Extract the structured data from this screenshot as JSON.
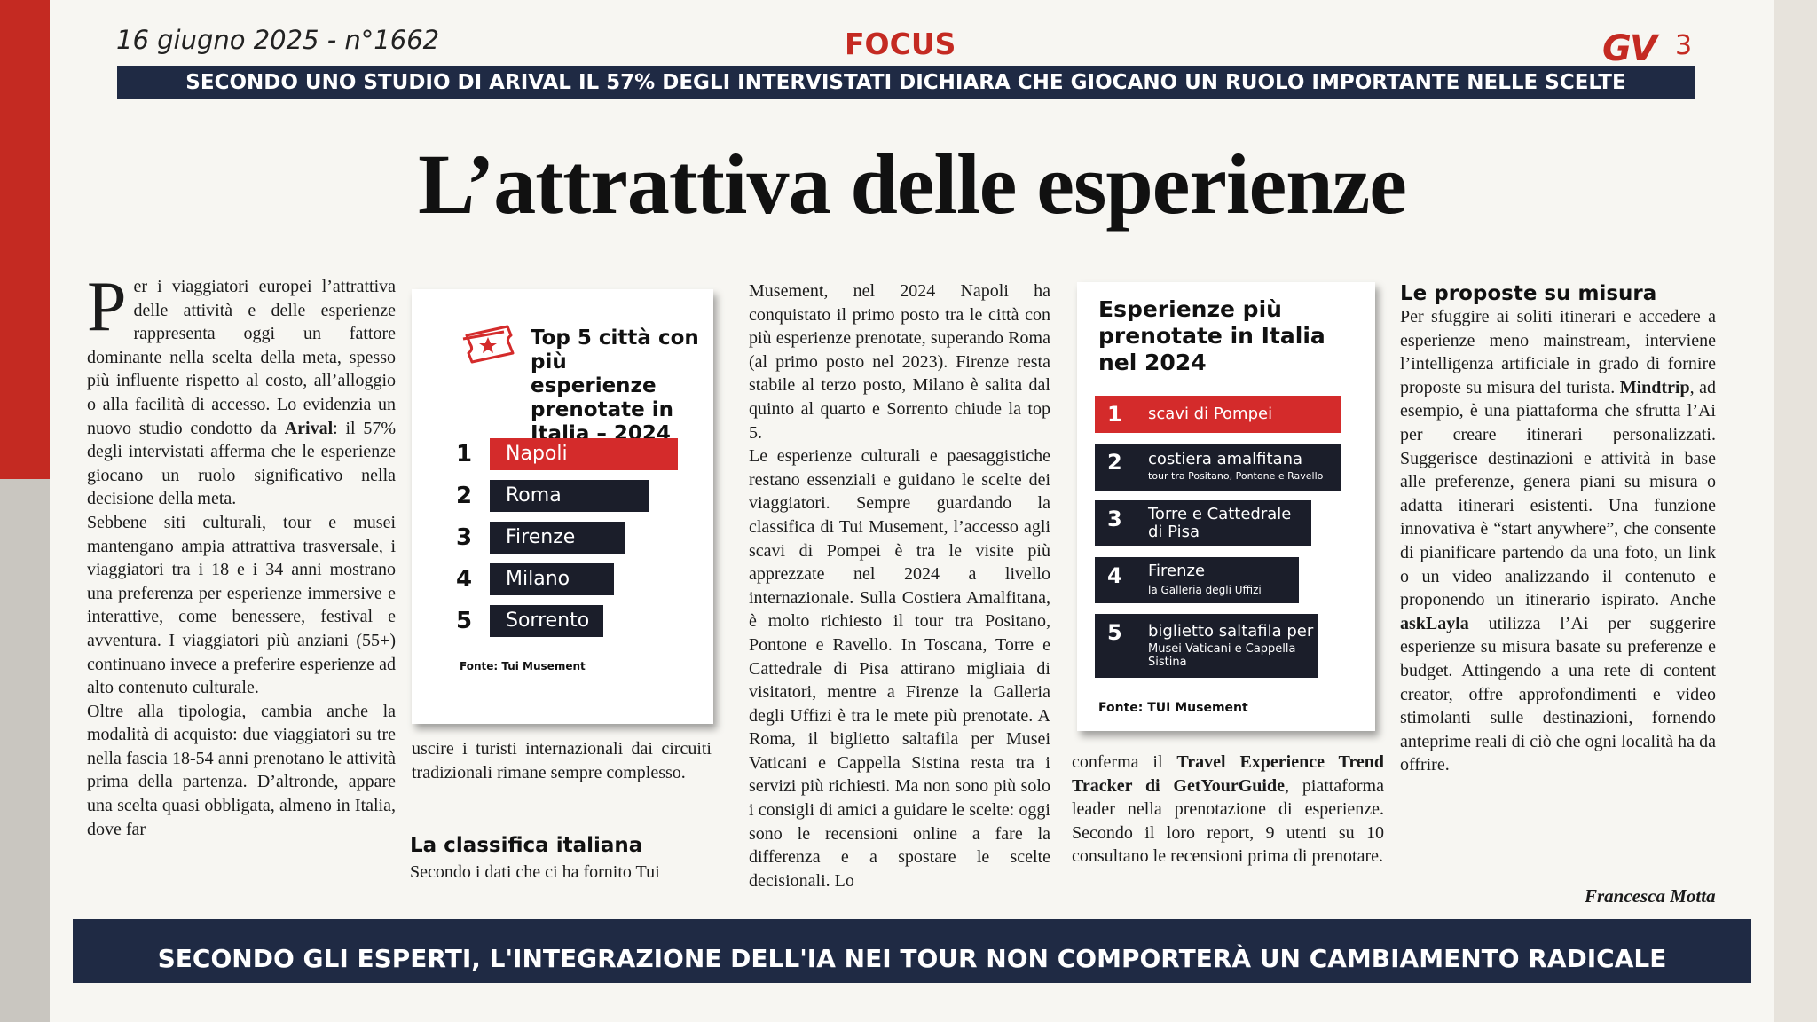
{
  "header": {
    "date_issue": "16 giugno 2025 - n°1662",
    "section": "FOCUS",
    "logo": "GV",
    "page_number": "3"
  },
  "top_band": "SECONDO UNO STUDIO DI ARIVAL IL 57% DEGLI INTERVISTATI DICHIARA CHE GIOCANO UN RUOLO IMPORTANTE NELLE SCELTE",
  "headline": "L’attrattiva delle esperienze",
  "col1": {
    "dropcap": "P",
    "p1": "er i viaggiatori europei l’attrattiva delle attività e delle esperienze rappresenta oggi un fattore dominante nella scelta della meta, spesso più influente rispetto al costo, all’alloggio o alla facilità di accesso. Lo evidenzia un nuovo studio condotto da ",
    "p1_bold": "Arival",
    "p1_end": ": il 57% degli intervistati afferma che le esperienze giocano un ruolo significativo nella decisione della meta.",
    "p2": "Sebbene siti culturali, tour e musei mantengano ampia attrattiva trasversale, i viaggiatori tra i 18 e i 34 anni mostrano una preferenza per esperienze immersive e interattive, come benessere, festival e avventura. I viaggiatori più anziani (55+) continuano invece a preferire esperienze ad alto contenuto culturale.",
    "p3": "Oltre alla tipologia, cambia anche la modalità di acquisto: due viaggiatori su tre nella fascia 18-54 anni prenotano le attività prima della partenza. D’altronde, appare una scelta quasi obbligata, almeno in Italia, dove far"
  },
  "col2": {
    "p1": "uscire i turisti internazionali dai circuiti tradizionali rimane sempre complesso.",
    "subhead": "La classifica italiana",
    "p2": "Secondo i dati che ci ha fornito Tui"
  },
  "col3": {
    "p1": "Musement, nel 2024 Napoli ha conquistato il primo posto tra le città con più esperienze prenotate, superando Roma (al primo posto nel 2023). Firenze resta stabile al terzo posto, Milano è salita dal quinto al quarto e Sorrento chiude la top 5.",
    "p2": "Le esperienze culturali e paesaggistiche restano essenziali e guidano le scelte dei viaggiatori. Sempre guardando la classifica di Tui Musement, l’accesso agli scavi di Pompei è tra le visite più apprezzate nel 2024 a livello internazionale. Sulla Costiera Amalfitana, è molto richiesto il tour tra Positano, Pontone e Ravello. In Toscana, Torre e Cattedrale di Pisa attirano migliaia di visitatori, mentre a Firenze la Galleria degli Uffizi è tra le mete più prenotate. A Roma, il biglietto saltafila per Musei Vaticani e Cappella Sistina resta tra i servizi più richiesti. Ma non sono più solo i consigli di amici a guidare le scelte: oggi sono le recensioni online a fare la differenza e a spostare le scelte decisionali. Lo"
  },
  "col4": {
    "p1_start": "conferma il ",
    "p1_bold": "Travel Experience Trend Tracker di GetYourGuide",
    "p1_end": ", piattaforma leader nella prenotazione di esperienze. Secondo il loro report, 9 utenti su 10 consultano le recensioni prima di prenotare."
  },
  "col5": {
    "subhead": "Le proposte su misura",
    "p1_a": "Per sfuggire ai soliti itinerari e accedere a esperienze meno mainstream, interviene l’intelligenza artificiale in grado di fornire proposte su misura del turista. ",
    "p1_bold1": "Mindtrip",
    "p1_b": ", ad esempio, è una piattaforma che sfrutta l’Ai per creare itinerari personalizzati. Suggerisce destinazioni e attività in base alle preferenze, genera piani su misura o adatta itinerari esistenti. Una funzione innovativa è “start anywhere”, che consente di pianificare partendo da una foto, un link o un video analizzando il contenuto e proponendo un itinerario ispirato. Anche ",
    "p1_bold2": "askLayla",
    "p1_c": " utilizza l’Ai per suggerire esperienze su misura basate su preferenze e budget. Attingendo a una rete di content creator, offre approfondimenti e video stimolanti sulle destinazioni, fornendo anteprime reali di ciò che ogni località ha da offrire.",
    "author": "Francesca Motta"
  },
  "box_cities": {
    "title": "Top 5 città con più esperienze prenotate in Italia – 2024",
    "items": [
      {
        "rank": "1",
        "name": "Napoli"
      },
      {
        "rank": "2",
        "name": "Roma"
      },
      {
        "rank": "3",
        "name": "Firenze"
      },
      {
        "rank": "4",
        "name": "Milano"
      },
      {
        "rank": "5",
        "name": "Sorrento"
      }
    ],
    "source": "Fonte: Tui Musement",
    "colors": {
      "first": "#d42b2b",
      "others": "#1b1e2a"
    }
  },
  "box_experiences": {
    "title": "Esperienze più prenotate in Italia nel 2024",
    "items": [
      {
        "rank": "1",
        "name": "scavi di Pompei",
        "sub": ""
      },
      {
        "rank": "2",
        "name": "costiera amalfitana",
        "sub": "tour tra Positano, Pontone e Ravello"
      },
      {
        "rank": "3",
        "name": "Torre e Cattedrale",
        "sub": "di Pisa"
      },
      {
        "rank": "4",
        "name": "Firenze",
        "sub": "la Galleria degli Uffizi"
      },
      {
        "rank": "5",
        "name": "biglietto saltafila per",
        "sub": "Musei Vaticani e Cappella Sistina"
      }
    ],
    "source": "Fonte: TUI Musement"
  },
  "bottom_band": "SECONDO GLI ESPERTI, L'INTEGRAZIONE DELL'IA NEI TOUR NON COMPORTERÀ UN CAMBIAMENTO RADICALE"
}
